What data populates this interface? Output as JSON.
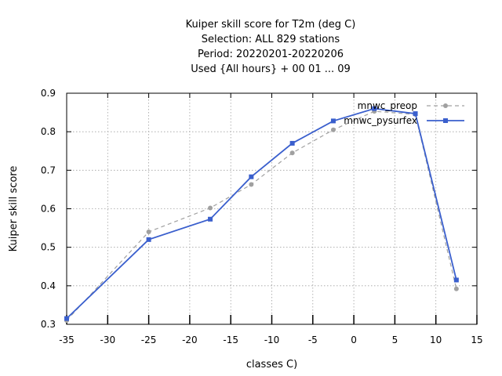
{
  "chart_data": {
    "type": "line",
    "title_lines": [
      "Kuiper skill score  for T2m (deg C)",
      "Selection: ALL    829 stations",
      "Period: 20220201-20220206",
      "Used {All hours} + 00 01 ... 09"
    ],
    "xlabel": "classes C)",
    "ylabel": "Kuiper skill score",
    "xlim": [
      -35,
      15
    ],
    "ylim": [
      0.3,
      0.9
    ],
    "x_ticks": [
      -35,
      -30,
      -25,
      -20,
      -15,
      -10,
      -5,
      0,
      5,
      10,
      15
    ],
    "y_ticks": [
      0.3,
      0.4,
      0.5,
      0.6,
      0.7,
      0.8,
      0.9
    ],
    "x_tick_labels": [
      "-35",
      "-30",
      "-25",
      "-20",
      "-15",
      "-10",
      "-5",
      "0",
      "5",
      "10",
      "15"
    ],
    "y_tick_labels": [
      "0.3",
      "0.4",
      "0.5",
      "0.6",
      "0.7",
      "0.8",
      "0.9"
    ],
    "grid": true,
    "legend_position": "top-right",
    "x": [
      -35,
      -25,
      -17.5,
      -12.5,
      -7.5,
      -2.5,
      2.5,
      7.5,
      12.5
    ],
    "series": [
      {
        "name": "mnwc_preop",
        "color": "#a0a0a0",
        "style": "dashed",
        "marker": "circle",
        "values": [
          0.31,
          0.54,
          0.602,
          0.663,
          0.745,
          0.805,
          0.853,
          0.845,
          0.392
        ]
      },
      {
        "name": "mnwc_pysurfex",
        "color": "#3a5fcd",
        "style": "solid",
        "marker": "square",
        "values": [
          0.315,
          0.52,
          0.573,
          0.683,
          0.77,
          0.828,
          0.86,
          0.847,
          0.415
        ]
      }
    ]
  }
}
